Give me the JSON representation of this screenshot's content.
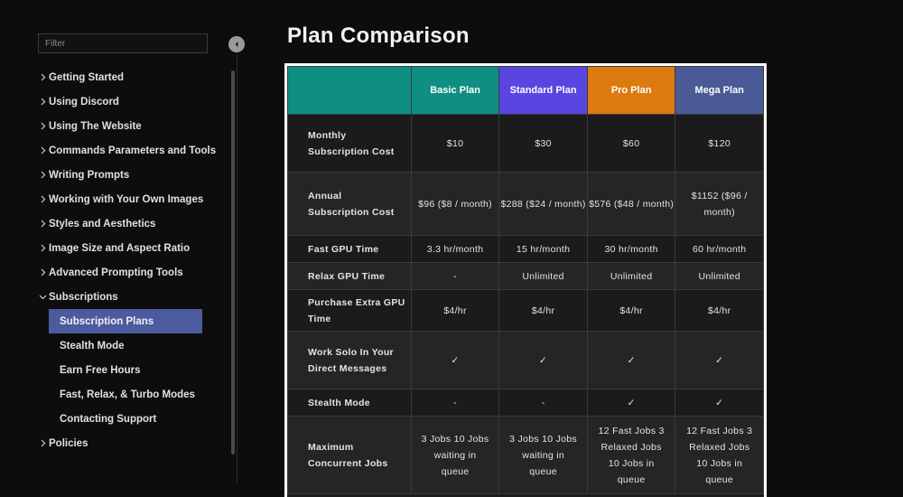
{
  "sidebar": {
    "filter_placeholder": "Filter",
    "items": [
      {
        "label": "Getting Started",
        "type": "section",
        "chevron": "right"
      },
      {
        "label": "Using Discord",
        "type": "section",
        "chevron": "right"
      },
      {
        "label": "Using The Website",
        "type": "section",
        "chevron": "right"
      },
      {
        "label": "Commands Parameters and Tools",
        "type": "section",
        "chevron": "right"
      },
      {
        "label": "Writing Prompts",
        "type": "section",
        "chevron": "right"
      },
      {
        "label": "Working with Your Own Images",
        "type": "section",
        "chevron": "right"
      },
      {
        "label": "Styles and Aesthetics",
        "type": "section",
        "chevron": "right"
      },
      {
        "label": "Image Size and Aspect Ratio",
        "type": "section",
        "chevron": "right"
      },
      {
        "label": "Advanced Prompting Tools",
        "type": "section",
        "chevron": "right"
      },
      {
        "label": "Subscriptions",
        "type": "section",
        "chevron": "down"
      },
      {
        "label": "Subscription Plans",
        "type": "sub",
        "active": true
      },
      {
        "label": "Stealth Mode",
        "type": "sub"
      },
      {
        "label": "Earn Free Hours",
        "type": "sub"
      },
      {
        "label": "Fast, Relax, & Turbo Modes",
        "type": "sub"
      },
      {
        "label": "Contacting Support",
        "type": "sub"
      },
      {
        "label": "Policies",
        "type": "section",
        "chevron": "right"
      }
    ]
  },
  "main": {
    "title": "Plan Comparison",
    "table": {
      "headers": [
        "",
        "Basic Plan",
        "Standard Plan",
        "Pro Plan",
        "Mega Plan"
      ],
      "header_colors": {
        "basic": "#0f8f82",
        "standard": "#5a45e0",
        "pro": "#dc7a0f",
        "mega": "#4a5a96"
      },
      "rows": [
        {
          "label": "Monthly Subscription Cost",
          "cells": [
            "$10",
            "$30",
            "$60",
            "$120"
          ]
        },
        {
          "label": "Annual Subscription Cost",
          "cells": [
            "$96 ($8 / month)",
            "$288 ($24 / month)",
            "$576 ($48 / month)",
            "$1152 ($96 / month)"
          ]
        },
        {
          "label": "Fast GPU Time",
          "cells": [
            "3.3 hr/month",
            "15 hr/month",
            "30 hr/month",
            "60 hr/month"
          ]
        },
        {
          "label": "Relax GPU Time",
          "cells": [
            "-",
            "Unlimited",
            "Unlimited",
            "Unlimited"
          ]
        },
        {
          "label": "Purchase Extra GPU Time",
          "cells": [
            "$4/hr",
            "$4/hr",
            "$4/hr",
            "$4/hr"
          ]
        },
        {
          "label": "Work Solo In Your Direct Messages",
          "cells": [
            "✓",
            "✓",
            "✓",
            "✓"
          ]
        },
        {
          "label": "Stealth Mode",
          "cells": [
            "-",
            "-",
            "✓",
            "✓"
          ]
        },
        {
          "label": "Maximum Concurrent Jobs",
          "cells": [
            "3 Jobs 10 Jobs waiting in queue",
            "3 Jobs 10 Jobs waiting in queue",
            "12 Fast Jobs 3 Relaxed Jobs 10 Jobs in queue",
            "12 Fast Jobs 3 Relaxed Jobs 10 Jobs in queue"
          ]
        }
      ]
    }
  }
}
